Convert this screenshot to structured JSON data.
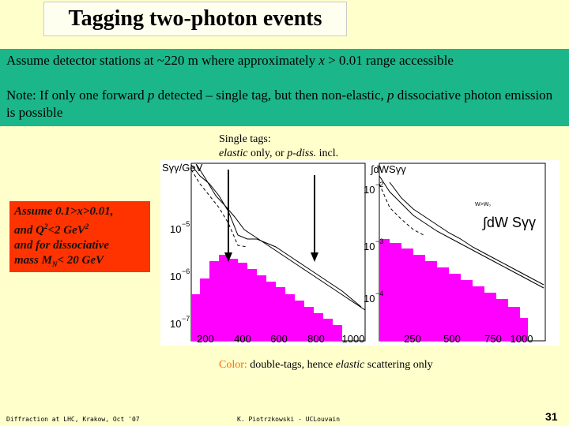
{
  "title": "Tagging two-photon events",
  "band": {
    "line1": [
      "Assume detector stations at ~220 m where approximately ",
      "x",
      " > 0.01 range accessible"
    ],
    "note": [
      "Note: If only one forward ",
      "p",
      " detected – single tag, but then non-elastic, ",
      "p",
      " dissociative photon emission is possible"
    ]
  },
  "single_tags": {
    "line1": "Single tags:",
    "line2": [
      "elastic",
      " only, or ",
      "p-diss.",
      " incl."
    ]
  },
  "cuts_box": {
    "line1": "Assume 0.1>x>0.01,",
    "line2": [
      "and Q",
      "2",
      "<2 GeV",
      "2"
    ],
    "line3": "and for dissociative",
    "line4": [
      "mass M",
      "N",
      "< 20 GeV"
    ]
  },
  "left_plot": {
    "ylabel": "Sγγ/GeV",
    "yticks": [
      {
        "base": "10",
        "exp": "−5"
      },
      {
        "base": "10",
        "exp": "−6"
      },
      {
        "base": "10",
        "exp": "−7"
      }
    ],
    "xticks": [
      "200",
      "400",
      "600",
      "800",
      "1000"
    ]
  },
  "right_plot": {
    "ylabel": "∫dWSγγ",
    "formula": "∫dW Sγγ",
    "limit": "W>W₀",
    "yticks": [
      {
        "base": "10",
        "exp": "−2"
      },
      {
        "base": "10",
        "exp": "−3"
      },
      {
        "base": "10",
        "exp": "−4"
      }
    ],
    "xticks": [
      "250",
      "500",
      "750",
      "1000"
    ]
  },
  "caption": [
    "Color:",
    " double-tags, hence ",
    "elastic",
    " scattering only"
  ],
  "footer": {
    "left": "Diffraction at LHC, Krakow, Oct '07",
    "center": "K. Piotrzkowski - UCLouvain",
    "page": "31"
  }
}
